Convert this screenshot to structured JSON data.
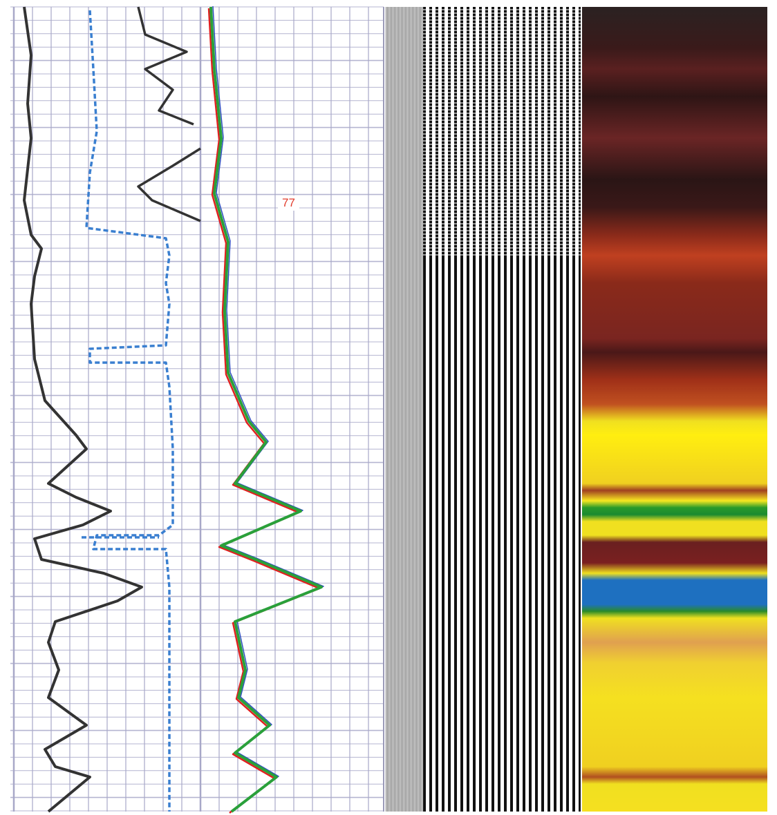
{
  "depth_label": "77"
}
